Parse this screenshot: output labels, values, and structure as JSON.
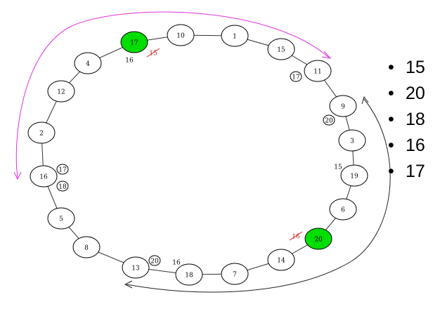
{
  "ring": {
    "nodes": [
      {
        "id": "n10",
        "label": "10",
        "highlight": false
      },
      {
        "id": "n1",
        "label": "1",
        "highlight": false
      },
      {
        "id": "n15",
        "label": "15",
        "highlight": false
      },
      {
        "id": "n11",
        "label": "11",
        "highlight": false
      },
      {
        "id": "n9",
        "label": "9",
        "highlight": false
      },
      {
        "id": "n3",
        "label": "3",
        "highlight": false
      },
      {
        "id": "n19",
        "label": "19",
        "highlight": false
      },
      {
        "id": "n6",
        "label": "6",
        "highlight": false
      },
      {
        "id": "n20",
        "label": "20",
        "highlight": true
      },
      {
        "id": "n14",
        "label": "14",
        "highlight": false
      },
      {
        "id": "n7",
        "label": "7",
        "highlight": false
      },
      {
        "id": "n18",
        "label": "18",
        "highlight": false
      },
      {
        "id": "n13",
        "label": "13",
        "highlight": false
      },
      {
        "id": "n8",
        "label": "8",
        "highlight": false
      },
      {
        "id": "n5",
        "label": "5",
        "highlight": false
      },
      {
        "id": "n16",
        "label": "16",
        "highlight": false
      },
      {
        "id": "n2",
        "label": "2",
        "highlight": false
      },
      {
        "id": "n12",
        "label": "12",
        "highlight": false
      },
      {
        "id": "n4",
        "label": "4",
        "highlight": false
      },
      {
        "id": "n17",
        "label": "17",
        "highlight": true
      }
    ],
    "annotations": [
      {
        "id": "a-16-under-17",
        "label": "16",
        "circled": false,
        "struck": false
      },
      {
        "id": "a-15-struck",
        "label": "15",
        "circled": false,
        "struck": true
      },
      {
        "id": "a-17-near-11",
        "label": "17",
        "circled": true,
        "struck": false
      },
      {
        "id": "a-20-near-9",
        "label": "20",
        "circled": true,
        "struck": false
      },
      {
        "id": "a-15-near-19",
        "label": "15",
        "circled": false,
        "struck": false
      },
      {
        "id": "a-16-struck-near-20",
        "label": "16",
        "circled": false,
        "struck": true
      },
      {
        "id": "a-17-near-16",
        "label": "17",
        "circled": true,
        "struck": false
      },
      {
        "id": "a-18-near-16",
        "label": "18",
        "circled": true,
        "struck": false
      },
      {
        "id": "a-20-near-13",
        "label": "20",
        "circled": true,
        "struck": false
      },
      {
        "id": "a-16-near-18",
        "label": "16",
        "circled": false,
        "struck": false
      }
    ],
    "colors": {
      "node_fill": "#ffffff",
      "highlight_fill": "#00dd00",
      "stroke": "#000000",
      "pink_arrow": "#dd33dd",
      "black_arrow": "#222222",
      "strike": "#cc2222"
    }
  },
  "list": {
    "items": [
      "15",
      "20",
      "18",
      "16",
      "17"
    ]
  }
}
